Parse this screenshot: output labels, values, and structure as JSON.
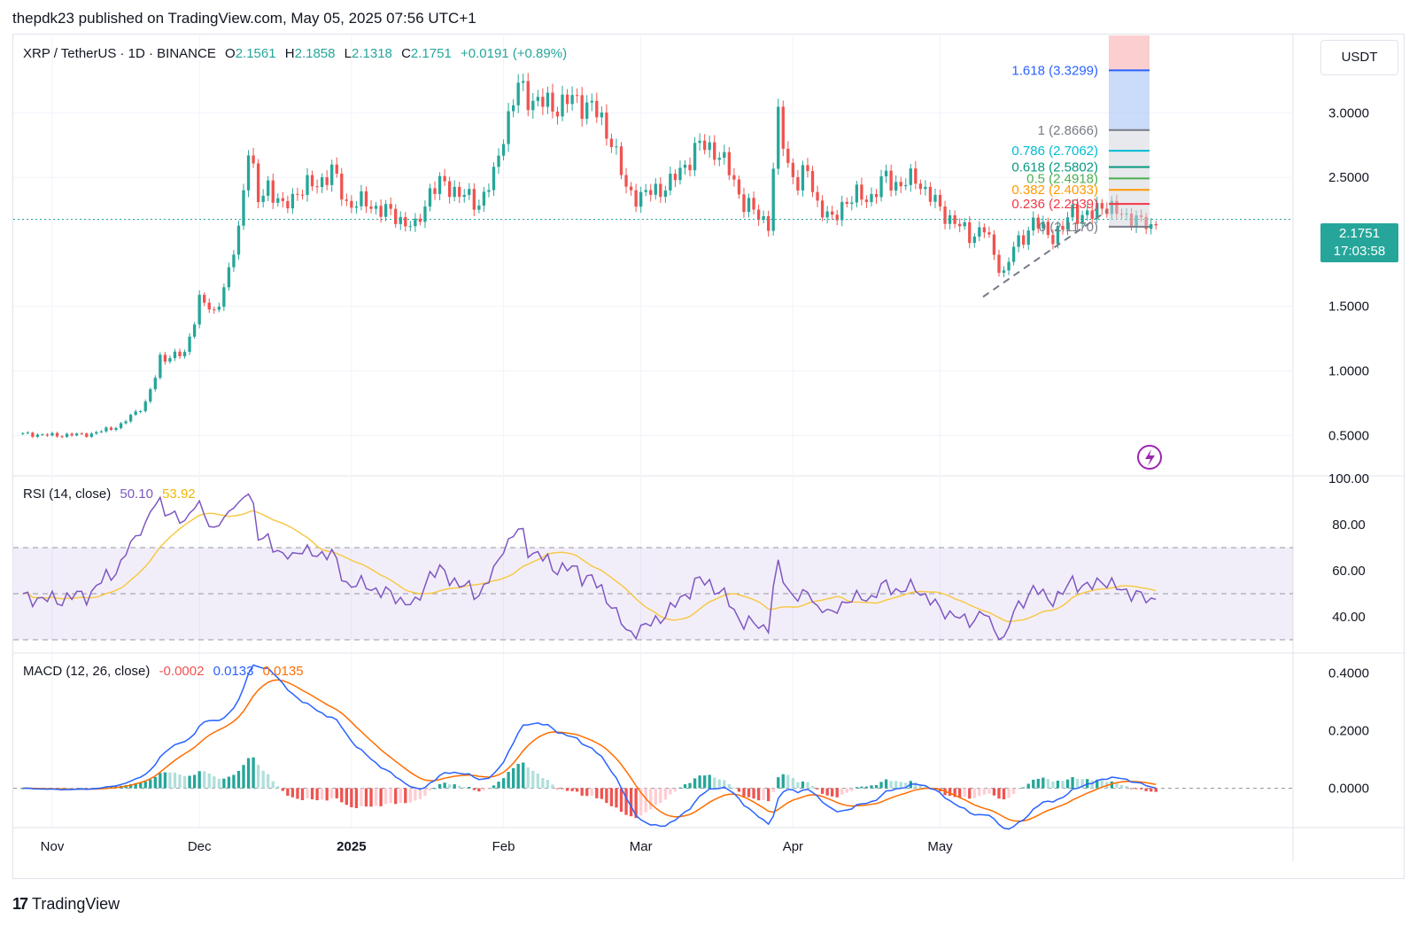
{
  "header": {
    "text": "thepdk23 published on TradingView.com, May 05, 2025 07:56 UTC+1"
  },
  "main_legend": {
    "symbol": "XRP / TetherUS · 1D · BINANCE",
    "o_label": "O",
    "o_value": "2.1561",
    "h_label": "H",
    "h_value": "2.1858",
    "l_label": "L",
    "l_value": "2.1318",
    "c_label": "C",
    "c_value": "2.1751",
    "change": "+0.0191 (+0.89%)"
  },
  "currency_button": "USDT",
  "last_price": {
    "value": "2.1751",
    "countdown": "17:03:58"
  },
  "rsi_legend": {
    "label": "RSI (14, close)",
    "rsi": "50.10",
    "ma": "53.92"
  },
  "macd_legend": {
    "label": "MACD (12, 26, close)",
    "hist": "-0.0002",
    "macd": "0.0133",
    "signal": "0.0135"
  },
  "footer": {
    "brand": "TradingView",
    "logo_text": "17"
  },
  "colors": {
    "up": "#26a69a",
    "down": "#ef5350",
    "rsi": "#7e57c2",
    "rsi_ma": "#f7c948",
    "macd": "#2962ff",
    "signal": "#ff6d00"
  },
  "chart_data": [
    {
      "type": "candlestick",
      "title": "XRP / TetherUS · 1D · BINANCE",
      "x_labels": [
        "Nov",
        "Dec",
        "2025",
        "Feb",
        "Mar",
        "Apr",
        "May"
      ],
      "y_ticks": [
        "0.5000",
        "1.0000",
        "1.5000",
        "2.5000",
        "3.0000"
      ],
      "ylim": [
        0.2,
        3.6
      ],
      "fib_levels": [
        {
          "ratio": "1.618",
          "price": "3.3299",
          "color": "#2962ff"
        },
        {
          "ratio": "1",
          "price": "2.8666",
          "color": "#787b86"
        },
        {
          "ratio": "0.786",
          "price": "2.7062",
          "color": "#00bcd4"
        },
        {
          "ratio": "0.618",
          "price": "2.5802",
          "color": "#089981"
        },
        {
          "ratio": "0.5",
          "price": "2.4918",
          "color": "#4caf50"
        },
        {
          "ratio": "0.382",
          "price": "2.4033",
          "color": "#ff9800"
        },
        {
          "ratio": "0.236",
          "price": "2.2939",
          "color": "#f23645"
        },
        {
          "ratio": "0",
          "price": "2.1170",
          "color": "#787b86"
        }
      ],
      "close_anchors": [
        [
          0,
          0.51
        ],
        [
          7,
          0.5
        ],
        [
          14,
          0.51
        ],
        [
          20,
          0.58
        ],
        [
          25,
          0.75
        ],
        [
          27,
          0.95
        ],
        [
          28,
          1.1
        ],
        [
          33,
          1.13
        ],
        [
          36,
          1.55
        ],
        [
          39,
          1.45
        ],
        [
          42,
          1.75
        ],
        [
          44,
          2.1
        ],
        [
          46,
          2.75
        ],
        [
          48,
          2.3
        ],
        [
          50,
          2.45
        ],
        [
          53,
          2.25
        ],
        [
          56,
          2.4
        ],
        [
          60,
          2.45
        ],
        [
          63,
          2.55
        ],
        [
          66,
          2.3
        ],
        [
          70,
          2.3
        ],
        [
          73,
          2.25
        ],
        [
          76,
          2.2
        ],
        [
          80,
          2.1
        ],
        [
          83,
          2.4
        ],
        [
          86,
          2.45
        ],
        [
          90,
          2.35
        ],
        [
          93,
          2.3
        ],
        [
          96,
          2.5
        ],
        [
          98,
          2.85
        ],
        [
          101,
          3.2
        ],
        [
          104,
          3.1
        ],
        [
          108,
          3.05
        ],
        [
          112,
          3.1
        ],
        [
          116,
          3.05
        ],
        [
          120,
          2.8
        ],
        [
          123,
          2.4
        ],
        [
          126,
          2.35
        ],
        [
          129,
          2.4
        ],
        [
          132,
          2.45
        ],
        [
          135,
          2.6
        ],
        [
          138,
          2.75
        ],
        [
          141,
          2.72
        ],
        [
          144,
          2.55
        ],
        [
          147,
          2.3
        ],
        [
          150,
          2.2
        ],
        [
          152,
          2.15
        ],
        [
          154,
          2.95
        ],
        [
          156,
          2.6
        ],
        [
          158,
          2.45
        ],
        [
          160,
          2.55
        ],
        [
          162,
          2.3
        ],
        [
          165,
          2.15
        ],
        [
          167,
          2.3
        ],
        [
          170,
          2.35
        ],
        [
          173,
          2.35
        ],
        [
          176,
          2.5
        ],
        [
          178,
          2.45
        ],
        [
          180,
          2.45
        ],
        [
          182,
          2.5
        ],
        [
          184,
          2.4
        ],
        [
          187,
          2.25
        ],
        [
          190,
          2.15
        ],
        [
          193,
          2.05
        ],
        [
          196,
          2.1
        ],
        [
          198,
          1.9
        ],
        [
          200,
          1.75
        ],
        [
          202,
          1.95
        ],
        [
          204,
          2.05
        ],
        [
          206,
          2.15
        ],
        [
          208,
          2.1
        ],
        [
          210,
          2.05
        ],
        [
          212,
          2.1
        ],
        [
          214,
          2.25
        ],
        [
          216,
          2.2
        ],
        [
          218,
          2.2
        ],
        [
          220,
          2.3
        ],
        [
          222,
          2.25
        ],
        [
          224,
          2.2
        ],
        [
          226,
          2.2
        ],
        [
          228,
          2.15
        ],
        [
          230,
          2.1
        ],
        [
          231,
          2.18
        ]
      ],
      "rsi": {
        "ylim": [
          25,
          100
        ],
        "ticks": [
          "40.00",
          "60.00",
          "80.00",
          "100.00"
        ],
        "bands": [
          30,
          50,
          70
        ]
      },
      "macd": {
        "ylim": [
          -0.14,
          0.46
        ],
        "ticks": [
          "0.0000",
          "0.2000",
          "0.4000"
        ]
      }
    }
  ]
}
